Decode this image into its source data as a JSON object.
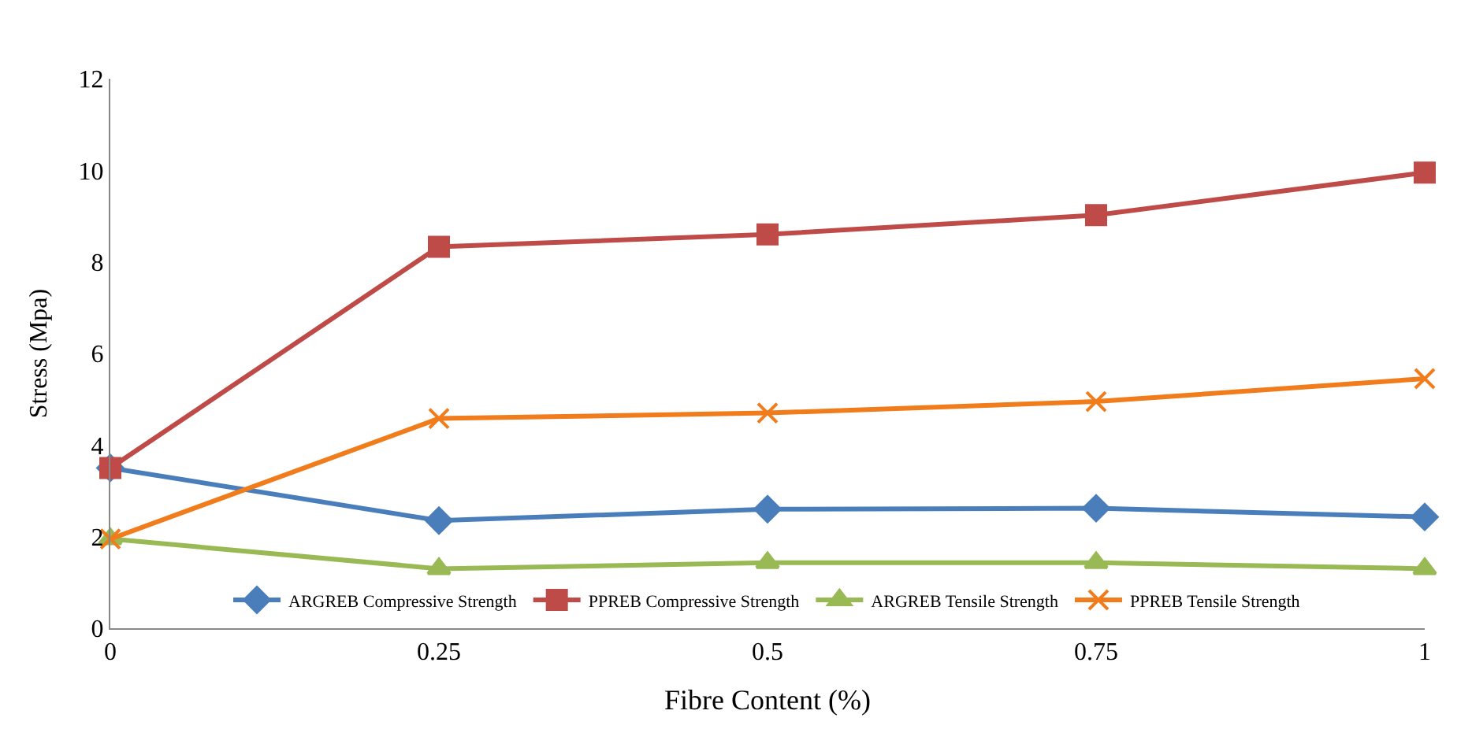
{
  "chart_data": {
    "type": "line",
    "xlabel": "Fibre Content (%)",
    "ylabel": "Stress (Mpa)",
    "x": [
      0,
      0.25,
      0.5,
      0.75,
      1
    ],
    "xlim": [
      0,
      1
    ],
    "xticks": [
      0,
      0.25,
      0.5,
      0.75,
      1
    ],
    "ylim": [
      0,
      12
    ],
    "yticks": [
      0,
      2,
      4,
      6,
      8,
      10,
      12
    ],
    "legend": "bottom",
    "series": [
      {
        "name": "ARGREB Compressive Strength",
        "color": "#4a7ebb",
        "marker": "diamond",
        "values": [
          3.5,
          2.35,
          2.6,
          2.62,
          2.43
        ]
      },
      {
        "name": "PPREB Compressive Strength",
        "color": "#be4b48",
        "marker": "square",
        "values": [
          3.5,
          8.33,
          8.6,
          9.02,
          9.95
        ]
      },
      {
        "name": "ARGREB Tensile Strength",
        "color": "#98b954",
        "marker": "triangle",
        "values": [
          1.95,
          1.3,
          1.43,
          1.43,
          1.3
        ]
      },
      {
        "name": "PPREB Tensile Strength",
        "color": "#f07c1c",
        "marker": "cross",
        "values": [
          1.95,
          4.58,
          4.7,
          4.95,
          5.45
        ]
      }
    ]
  }
}
